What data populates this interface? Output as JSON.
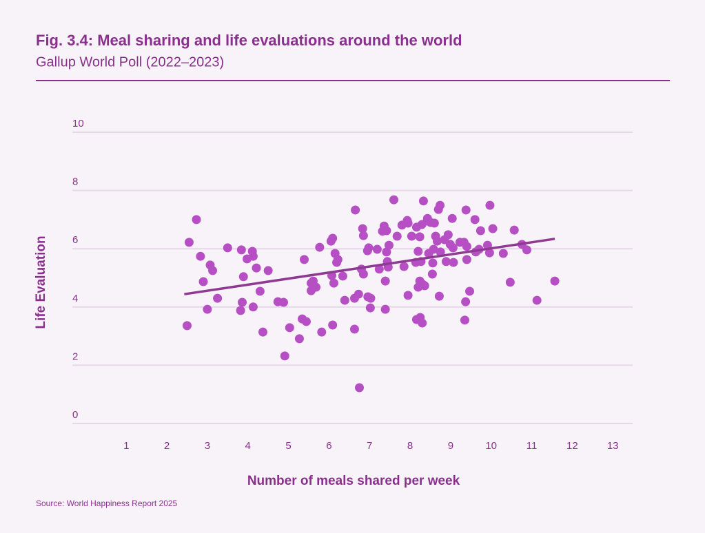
{
  "chart_data": {
    "type": "scatter",
    "title": "Fig. 3.4: Meal sharing and life evaluations around the world",
    "subtitle": "Gallup World Poll (2022–2023)",
    "x_label": "Number of meals shared per week",
    "y_label": "Life Evaluation",
    "source": "Source: World Happiness Report 2025",
    "xlim": [
      -0.33,
      13.49
    ],
    "ylim": [
      0,
      10
    ],
    "xticks": [
      1,
      2,
      3,
      4,
      5,
      6,
      7,
      8,
      9,
      10,
      11,
      12,
      13
    ],
    "yticks": [
      0,
      2,
      4,
      6,
      8,
      10
    ],
    "grid": true,
    "series": [
      {
        "color": "#b64fc4",
        "x": [
          2.5,
          2.55,
          2.73,
          2.83,
          2.9,
          3.0,
          3.07,
          3.13,
          3.25,
          3.5,
          3.82,
          3.84,
          3.86,
          3.89,
          3.98,
          4.11,
          4.13,
          4.13,
          4.21,
          4.3,
          4.37,
          4.5,
          4.74,
          4.88,
          4.91,
          5.03,
          5.27,
          5.34,
          5.39,
          5.44,
          5.56,
          5.56,
          5.61,
          5.68,
          5.77,
          5.82,
          6.05,
          6.09,
          6.07,
          6.09,
          6.12,
          6.15,
          6.19,
          6.22,
          6.34,
          6.39,
          6.63,
          6.65,
          6.63,
          6.73,
          6.75,
          6.8,
          6.83,
          6.85,
          6.85,
          6.95,
          6.96,
          6.98,
          7.02,
          7.03,
          7.19,
          7.24,
          7.32,
          7.36,
          7.39,
          7.39,
          7.42,
          7.42,
          7.44,
          7.46,
          7.48,
          7.6,
          7.68,
          7.8,
          7.85,
          7.93,
          7.95,
          7.95,
          8.04,
          8.14,
          8.16,
          8.16,
          8.2,
          8.2,
          8.24,
          8.24,
          8.25,
          8.27,
          8.29,
          8.3,
          8.31,
          8.33,
          8.36,
          8.42,
          8.43,
          8.46,
          8.51,
          8.55,
          8.56,
          8.58,
          8.6,
          8.63,
          8.67,
          8.7,
          8.74,
          8.72,
          8.75,
          8.85,
          8.89,
          8.94,
          8.99,
          9.04,
          9.06,
          9.07,
          9.23,
          9.33,
          9.37,
          9.35,
          9.38,
          9.4,
          9.4,
          9.47,
          9.6,
          9.62,
          9.7,
          9.74,
          9.91,
          9.96,
          9.97,
          10.04,
          10.3,
          10.47,
          10.57,
          10.76,
          10.88,
          11.13,
          11.57
        ],
        "y": [
          3.36,
          6.22,
          7.0,
          5.74,
          4.87,
          3.92,
          5.44,
          5.25,
          4.3,
          6.03,
          3.88,
          5.96,
          4.16,
          5.04,
          5.65,
          5.91,
          5.74,
          4.0,
          5.34,
          4.54,
          3.14,
          5.25,
          4.18,
          4.16,
          2.32,
          3.29,
          2.91,
          3.59,
          5.63,
          3.5,
          4.82,
          4.56,
          4.89,
          4.68,
          6.05,
          3.14,
          6.26,
          6.36,
          5.08,
          3.38,
          4.82,
          5.84,
          5.53,
          5.63,
          5.06,
          4.23,
          3.24,
          7.33,
          4.3,
          4.44,
          1.23,
          5.3,
          6.69,
          6.45,
          5.13,
          5.93,
          4.35,
          6.03,
          3.97,
          4.3,
          5.98,
          5.3,
          6.6,
          6.78,
          4.89,
          3.92,
          6.62,
          5.89,
          5.56,
          5.37,
          6.12,
          7.68,
          6.43,
          6.81,
          5.39,
          6.97,
          6.88,
          4.4,
          6.43,
          5.53,
          6.74,
          3.57,
          4.68,
          5.91,
          6.41,
          4.89,
          3.64,
          5.56,
          6.83,
          3.45,
          4.78,
          7.64,
          4.73,
          6.95,
          7.04,
          5.84,
          6.9,
          5.13,
          5.51,
          5.98,
          6.88,
          6.43,
          6.26,
          7.35,
          7.49,
          4.37,
          5.89,
          6.31,
          5.56,
          6.48,
          6.15,
          7.04,
          6.03,
          5.53,
          6.22,
          6.22,
          4.18,
          3.55,
          7.33,
          6.08,
          5.63,
          4.54,
          7.0,
          5.89,
          5.98,
          6.62,
          6.12,
          5.86,
          7.49,
          6.69,
          5.84,
          4.85,
          6.64,
          6.15,
          5.96,
          4.23,
          4.89
        ]
      }
    ],
    "trend_line": {
      "color": "#8e3a93",
      "x": [
        2.43,
        11.57
      ],
      "y": [
        4.44,
        6.34
      ]
    }
  }
}
